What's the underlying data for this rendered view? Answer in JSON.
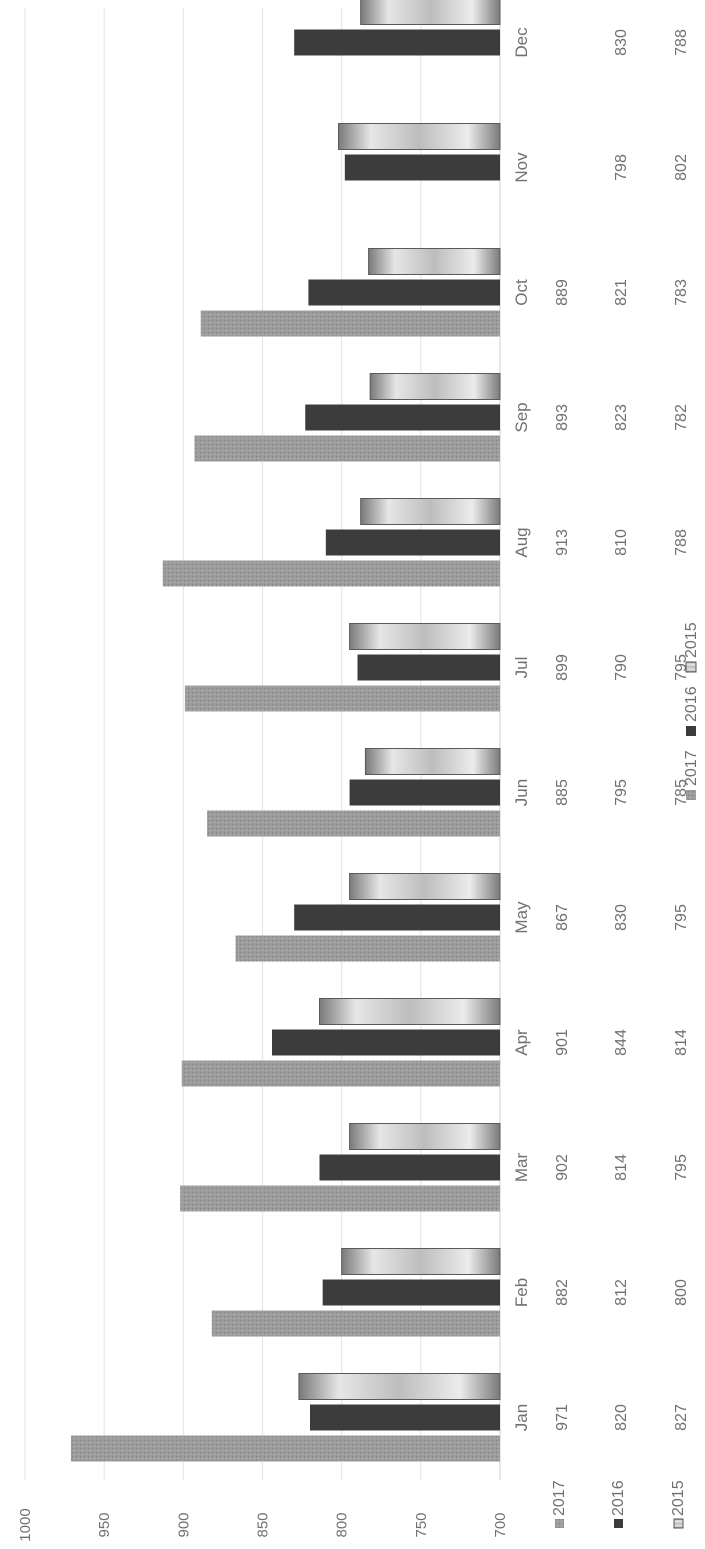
{
  "chart_data": {
    "type": "bar",
    "orientation": "rotated-90-ccw",
    "title": "",
    "xlabel": "",
    "ylabel": "",
    "ylim": [
      700,
      1000
    ],
    "yticks": [
      "700",
      "750",
      "800",
      "850",
      "900",
      "950",
      "1000"
    ],
    "grid": true,
    "legend_placement": "bottom",
    "categories": [
      "Jan",
      "Feb",
      "Mar",
      "Apr",
      "May",
      "Jun",
      "Jul",
      "Aug",
      "Sep",
      "Oct",
      "Nov",
      "Dec"
    ],
    "series": [
      {
        "name": "2017",
        "color": "#9a9a9a",
        "values": [
          971,
          882,
          902,
          901,
          867,
          885,
          899,
          913,
          893,
          889,
          null,
          null
        ],
        "table_values": [
          "971",
          "882",
          "902",
          "901",
          "867",
          "885",
          "899",
          "913",
          "893",
          "889",
          "",
          ""
        ]
      },
      {
        "name": "2016",
        "color": "#3c3c3c",
        "values": [
          820,
          812,
          814,
          844,
          830,
          795,
          790,
          810,
          823,
          821,
          798,
          830
        ],
        "table_values": [
          "820",
          "812",
          "814",
          "844",
          "830",
          "795",
          "790",
          "810",
          "823",
          "821",
          "798",
          "830"
        ]
      },
      {
        "name": "2015",
        "color": "#c4c4c4",
        "values": [
          827,
          800,
          795,
          814,
          795,
          785,
          795,
          788,
          782,
          783,
          802,
          788
        ],
        "table_values": [
          "827",
          "800",
          "795",
          "814",
          "795",
          "785",
          "795",
          "788",
          "782",
          "783",
          "802",
          "788"
        ]
      }
    ]
  }
}
